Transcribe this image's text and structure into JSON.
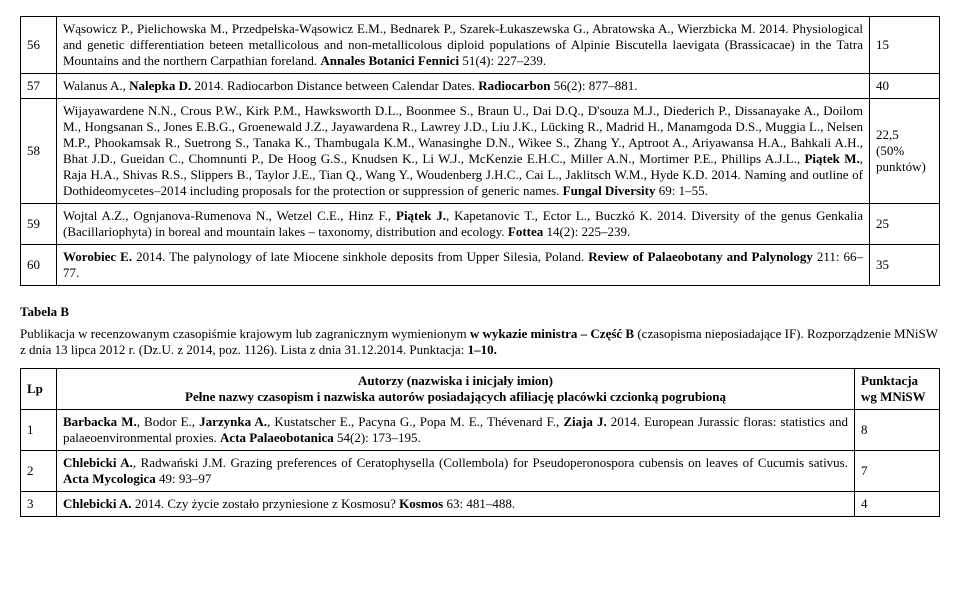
{
  "tableA": {
    "rows": [
      {
        "num": "56",
        "text": "Wąsowicz P., Pielichowska M., Przedpełska-Wąsowicz E.M., Bednarek P., Szarek-Łukaszewska G., Abratowska A., Wierzbicka M. 2014. Physiological and genetic differentiation beteen metallicolous and non-metallicolous diploid populations of Alpinie Biscutella laevigata (Brassicacae) in the Tatra Mountains and the northern Carpathian foreland. <b>Annales Botanici Fennici</b> 51(4): 227–239.",
        "pts": "15"
      },
      {
        "num": "57",
        "text": "Walanus A., <b>Nalepka D.</b> 2014. Radiocarbon Distance between Calendar Dates. <b>Radiocarbon</b> 56(2): 877–881.",
        "pts": "40"
      },
      {
        "num": "58",
        "text": "Wijayawardene N.N., Crous P.W., Kirk P.M., Hawksworth D.L., Boonmee S., Braun U., Dai D.Q., D'souza M.J., Diederich P., Dissanayake A., Doilom M., Hongsanan S., Jones E.B.G., Groenewald J.Z., Jayawardena R., Lawrey J.D., Liu J.K., Lücking R., Madrid H., Manamgoda D.S., Muggia L., Nelsen M.P., Phookamsak R., Suetrong S., Tanaka K., Thambugala K.M., Wanasinghe D.N., Wikee S., Zhang Y., Aptroot A., Ariyawansa H.A., Bahkali A.H., Bhat J.D., Gueidan C., Chomnunti P., De Hoog G.S., Knudsen K., Li W.J., McKenzie E.H.C., Miller A.N., Mortimer P.E., Phillips A.J.L., <b>Piątek M.</b>, Raja H.A., Shivas R.S., Slippers B., Taylor J.E., Tian Q., Wang Y., Woudenberg J.H.C., Cai L., Jaklitsch W.M., Hyde K.D. 2014. Naming and outline of Dothideomycetes–2014 including proposals for the protection or suppression of generic names. <b>Fungal Diversity</b> 69: 1–55.",
        "pts": "22,5\n(50% punktów)"
      },
      {
        "num": "59",
        "text": "Wojtal A.Z., Ognjanova-Rumenova N., Wetzel C.E., Hinz F., <b>Piątek J.</b>, Kapetanovic T., Ector L., Buczkó K. 2014. Diversity of the genus Genkalia (Bacillariophyta) in boreal and mountain lakes – taxonomy, distribution and ecology. <b>Fottea</b> 14(2): 225–239.",
        "pts": "25"
      },
      {
        "num": "60",
        "text": "<b>Worobiec E.</b> 2014. The palynology of late Miocene sinkhole deposits from Upper Silesia, Poland. <b>Review of Palaeobotany and Palynology</b> 211: 66–77.",
        "pts": "35"
      }
    ]
  },
  "tableB": {
    "title": "Tabela B",
    "subtitle": "Publikacja w recenzowanym czasopiśmie krajowym lub zagranicznym wymienionym <b>w wykazie ministra – Część B</b> (czasopisma nieposiadające IF). Rozporządzenie MNiSW z dnia 13 lipca 2012 r. (Dz.U. z 2014, poz. 1126). Lista z dnia 31.12.2014. Punktacja: <b>1–10.</b>",
    "headers": {
      "lp": "Lp",
      "authors_title": "Autorzy (nazwiska i inicjały imion)",
      "authors_sub": "Pełne nazwy czasopism i nazwiska autorów posiadających afiliację placówki czcionką pogrubioną",
      "pts": "Punktacja wg MNiSW"
    },
    "rows": [
      {
        "num": "1",
        "text": "<b>Barbacka M.</b>, Bodor E., <b>Jarzynka A.</b>, Kustatscher E., Pacyna G., Popa M. E., Thévenard F., <b>Ziaja J.</b> 2014. European Jurassic floras: statistics and palaeoenvironmental proxies. <b>Acta Palaeobotanica</b> 54(2): 173–195.",
        "pts": "8"
      },
      {
        "num": "2",
        "text": "<b>Chlebicki A.</b>, Radwański J.M. Grazing preferences of Ceratophysella (Collembola) for Pseudoperonospora cubensis on leaves of Cucumis sativus. <b>Acta Mycologica</b> 49: 93–97",
        "pts": "7"
      },
      {
        "num": "3",
        "text": "<b>Chlebicki A.</b> 2014. Czy życie zostało przyniesione z Kosmosu? <b>Kosmos</b> 63: 481–488.",
        "pts": "4"
      }
    ]
  }
}
